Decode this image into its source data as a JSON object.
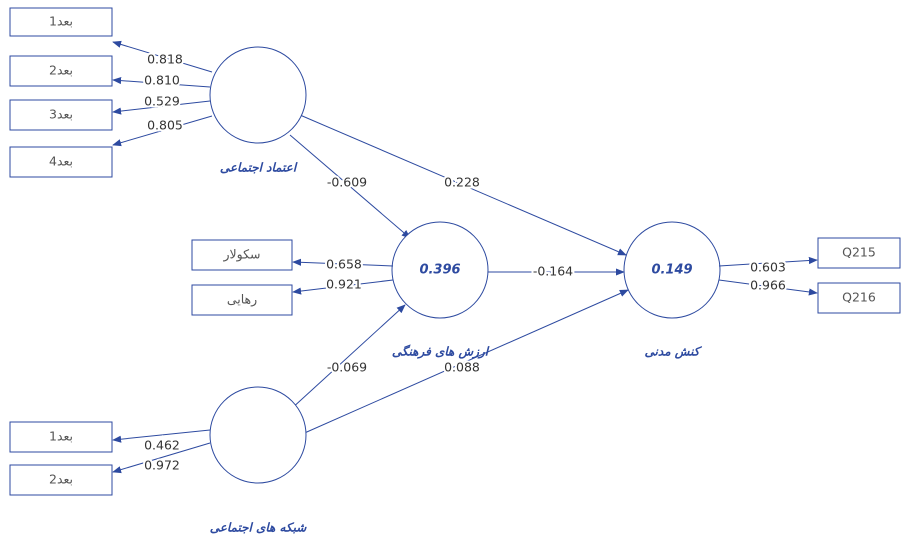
{
  "constructs": [
    {
      "label": "اعتماد اجتماعی",
      "indicators": [
        {
          "label": "بعد1",
          "loading": "0.818"
        },
        {
          "label": "بعد2",
          "loading": "0.810"
        },
        {
          "label": "بعد3",
          "loading": "0.529"
        },
        {
          "label": "بعد4",
          "loading": "0.805"
        }
      ]
    },
    {
      "label": "ارزش های فرهنگی",
      "r2": "0.396",
      "indicators": [
        {
          "label": "سکولار",
          "loading": "0.658"
        },
        {
          "label": "رهایی",
          "loading": "0.921"
        }
      ]
    },
    {
      "label": "کنش مدنی",
      "r2": "0.149",
      "indicators": [
        {
          "label": "Q215",
          "loading": "0.603"
        },
        {
          "label": "Q216",
          "loading": "0.966"
        }
      ]
    },
    {
      "label": "شبکه های اجتماعی",
      "indicators": [
        {
          "label": "بعد1",
          "loading": "0.462"
        },
        {
          "label": "بعد2",
          "loading": "0.972"
        }
      ]
    }
  ],
  "paths": [
    {
      "coefficient": "0.228"
    },
    {
      "coefficient": "-0.609"
    },
    {
      "coefficient": "-0.164"
    },
    {
      "coefficient": "-0.069"
    },
    {
      "coefficient": "0.088"
    }
  ]
}
